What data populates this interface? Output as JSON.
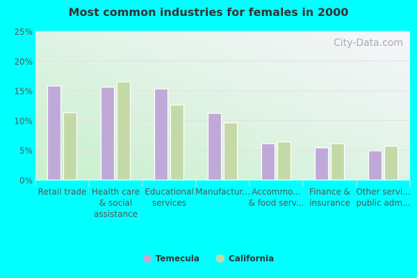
{
  "chart_data": {
    "type": "bar",
    "title": "Most common industries for females in 2000",
    "categories": [
      [
        "Retail trade"
      ],
      [
        "Health care",
        "& social",
        "assistance"
      ],
      [
        "Educational",
        "services"
      ],
      [
        "Manufactur..."
      ],
      [
        "Accommo...",
        "& food serv..."
      ],
      [
        "Finance &",
        "insurance"
      ],
      [
        "Other servi...",
        "public adm..."
      ]
    ],
    "series": [
      {
        "name": "Temecula",
        "color": "#c0a8d8",
        "values": [
          15.8,
          15.6,
          15.3,
          11.2,
          6.1,
          5.4,
          4.9
        ]
      },
      {
        "name": "California",
        "color": "#c4d9a8",
        "values": [
          11.3,
          16.5,
          12.6,
          9.6,
          6.4,
          6.1,
          5.7
        ]
      }
    ],
    "yticks": [
      "0%",
      "5%",
      "10%",
      "15%",
      "20%",
      "25%"
    ],
    "ylim": [
      0,
      25
    ],
    "grid": true,
    "legend": "bottom",
    "watermark": "City-Data.com"
  }
}
